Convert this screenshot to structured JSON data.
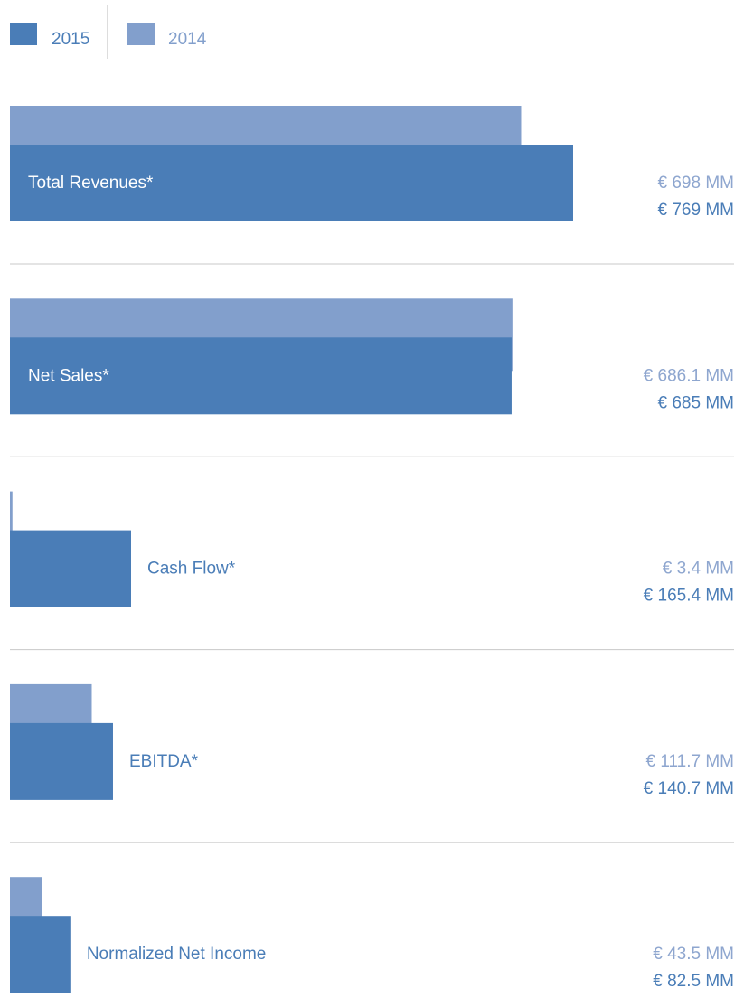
{
  "chart_data": {
    "type": "bar",
    "orientation": "horizontal",
    "categories": [
      "Total Revenues*",
      "Net Sales*",
      "Cash Flow*",
      "EBITDA*",
      "Normalized Net Income"
    ],
    "series": [
      {
        "name": "2015",
        "color": "#4a7db7",
        "values": [
          769,
          685,
          165.4,
          140.7,
          82.5
        ],
        "value_labels": [
          "€ 769 MM",
          "€ 685 MM",
          "€ 165.4 MM",
          "€ 140.7 MM",
          "€ 82.5 MM"
        ]
      },
      {
        "name": "2014",
        "color": "#829fcc",
        "values": [
          698,
          686.1,
          3.4,
          111.7,
          43.5
        ],
        "value_labels": [
          "€ 698 MM",
          "€ 686.1 MM",
          "€ 3.4 MM",
          "€ 111.7 MM",
          "€ 43.5 MM"
        ]
      }
    ]
  }
}
